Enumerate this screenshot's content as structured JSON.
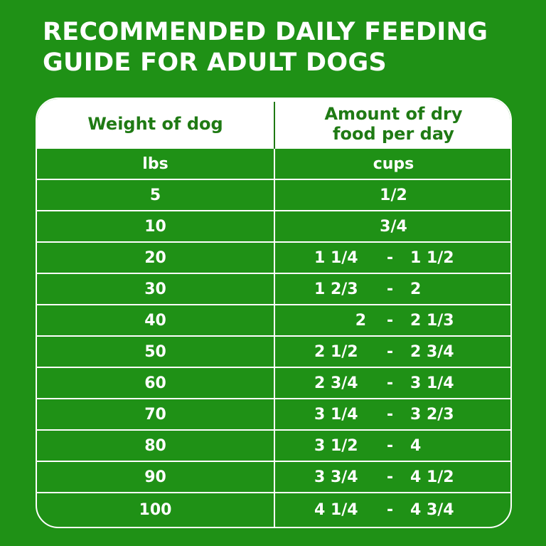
{
  "title": {
    "line1": "RECOMMENDED DAILY FEEDING",
    "line2": "GUIDE FOR ADULT DOGS"
  },
  "colors": {
    "background": "#1f9116",
    "header_text": "#1f7a14",
    "text": "#ffffff"
  },
  "table": {
    "header": {
      "weight": "Weight of dog",
      "amount_line1": "Amount of dry",
      "amount_line2": "food per day"
    },
    "units": {
      "weight": "lbs",
      "amount": "cups"
    },
    "rows": [
      {
        "weight": "5",
        "amount": "1/2"
      },
      {
        "weight": "10",
        "amount": "3/4"
      },
      {
        "weight": "20",
        "low": "1 1/4",
        "dash": "-",
        "high": "1 1/2"
      },
      {
        "weight": "30",
        "low": "1 2/3",
        "dash": "-",
        "high": "2"
      },
      {
        "weight": "40",
        "low": "2",
        "dash": "-",
        "high": "2 1/3"
      },
      {
        "weight": "50",
        "low": "2 1/2",
        "dash": "-",
        "high": "2 3/4"
      },
      {
        "weight": "60",
        "low": "2 3/4",
        "dash": "-",
        "high": "3 1/4"
      },
      {
        "weight": "70",
        "low": "3 1/4",
        "dash": "-",
        "high": "3 2/3"
      },
      {
        "weight": "80",
        "low": "3 1/2",
        "dash": "-",
        "high": "4"
      },
      {
        "weight": "90",
        "low": "3 3/4",
        "dash": "-",
        "high": "4 1/2"
      },
      {
        "weight": "100",
        "low": "4 1/4",
        "dash": "-",
        "high": "4 3/4"
      }
    ]
  }
}
